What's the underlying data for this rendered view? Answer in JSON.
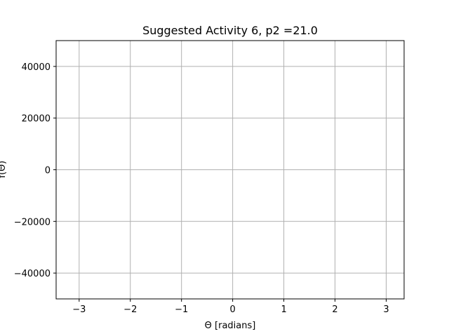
{
  "chart_data": {
    "type": "line",
    "title": "Suggested Activity 6, p2 =21.0",
    "xlabel": "Θ [radians]",
    "ylabel": "f(Θ)",
    "xlim": [
      -3.45,
      3.35
    ],
    "ylim": [
      -50000,
      50000
    ],
    "x_ticks": [
      -3,
      -2,
      -1,
      0,
      1,
      2,
      3
    ],
    "x_tick_labels": [
      "−3",
      "−2",
      "−1",
      "0",
      "1",
      "2",
      "3"
    ],
    "y_ticks": [
      40000,
      20000,
      0,
      -20000,
      -40000
    ],
    "y_tick_labels": [
      "40000",
      "20000",
      "0",
      "−20000",
      "−40000"
    ],
    "grid": true,
    "series": []
  },
  "colors": {
    "grid": "#b0b0b0",
    "axes": "#000000",
    "background": "#ffffff"
  }
}
